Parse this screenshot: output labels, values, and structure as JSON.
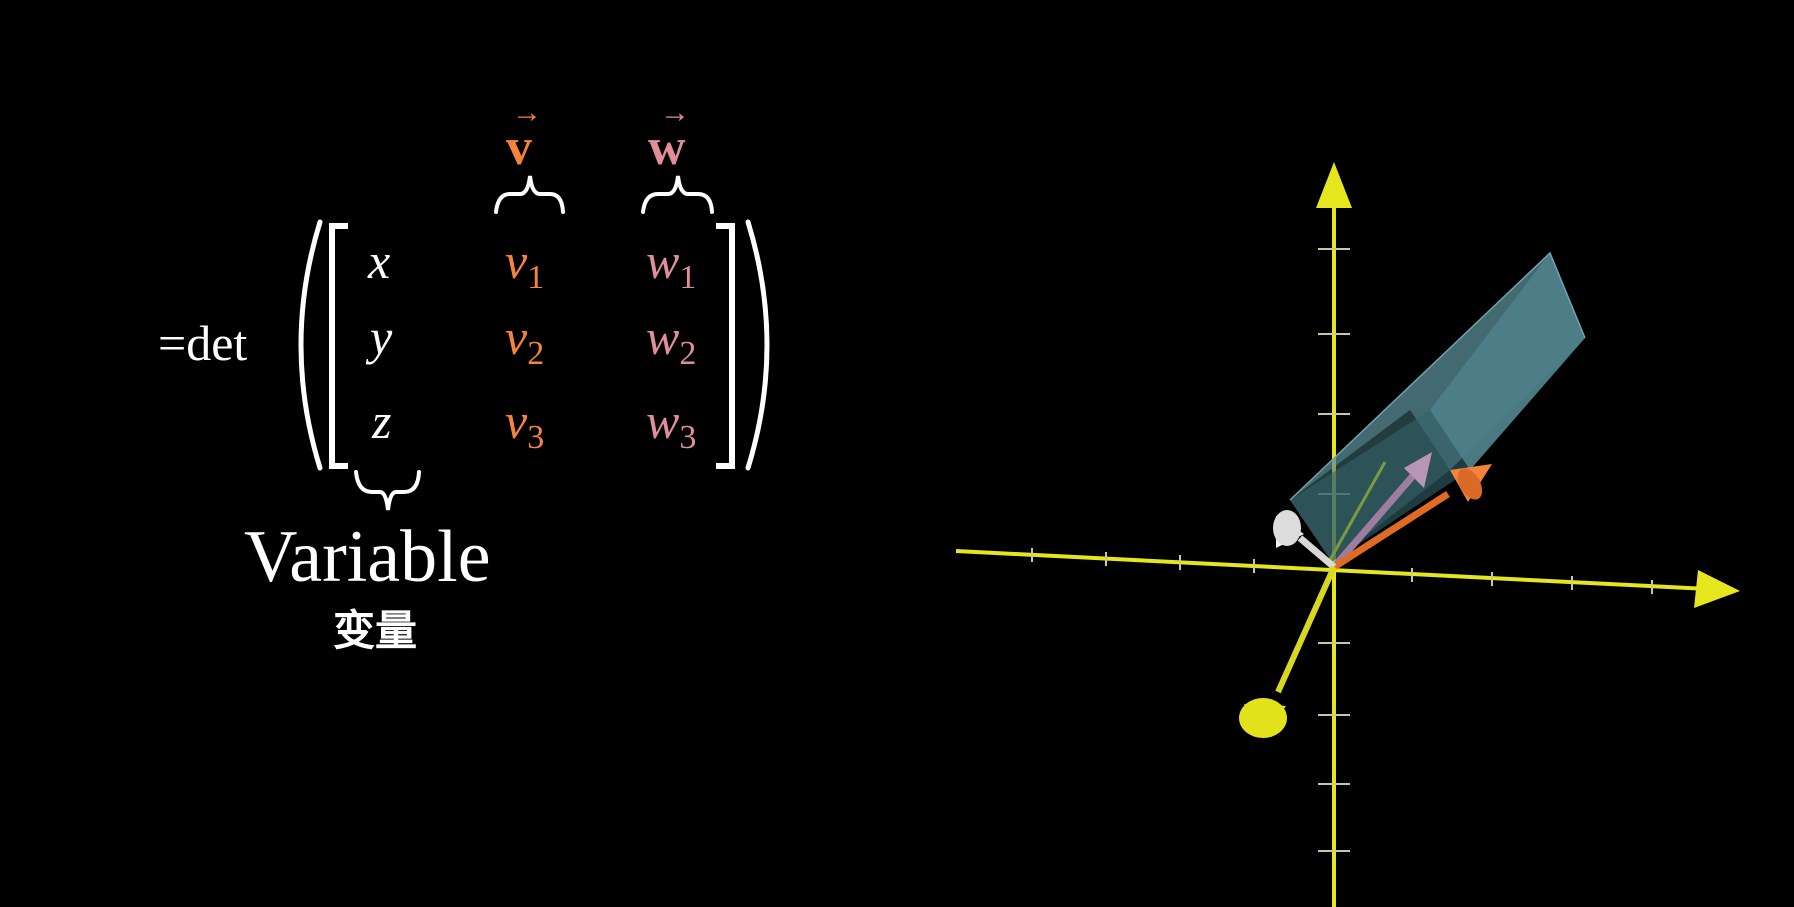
{
  "equation": {
    "prefix": "=det",
    "labels": {
      "v": "v",
      "w": "w"
    },
    "matrix": [
      [
        {
          "base": "x",
          "sub": ""
        },
        {
          "base": "v",
          "sub": "1"
        },
        {
          "base": "w",
          "sub": "1"
        }
      ],
      [
        {
          "base": "y",
          "sub": ""
        },
        {
          "base": "v",
          "sub": "2"
        },
        {
          "base": "w",
          "sub": "2"
        }
      ],
      [
        {
          "base": "z",
          "sub": ""
        },
        {
          "base": "v",
          "sub": "3"
        },
        {
          "base": "w",
          "sub": "3"
        }
      ]
    ],
    "variable_label": "Variable",
    "variable_label_cn": "变量"
  },
  "colors": {
    "background": "#000000",
    "text": "#ffffff",
    "v_vector": "#f4843b",
    "w_vector": "#e08e9a",
    "axes": "#e6e61e",
    "prism": "#4f7f86"
  }
}
